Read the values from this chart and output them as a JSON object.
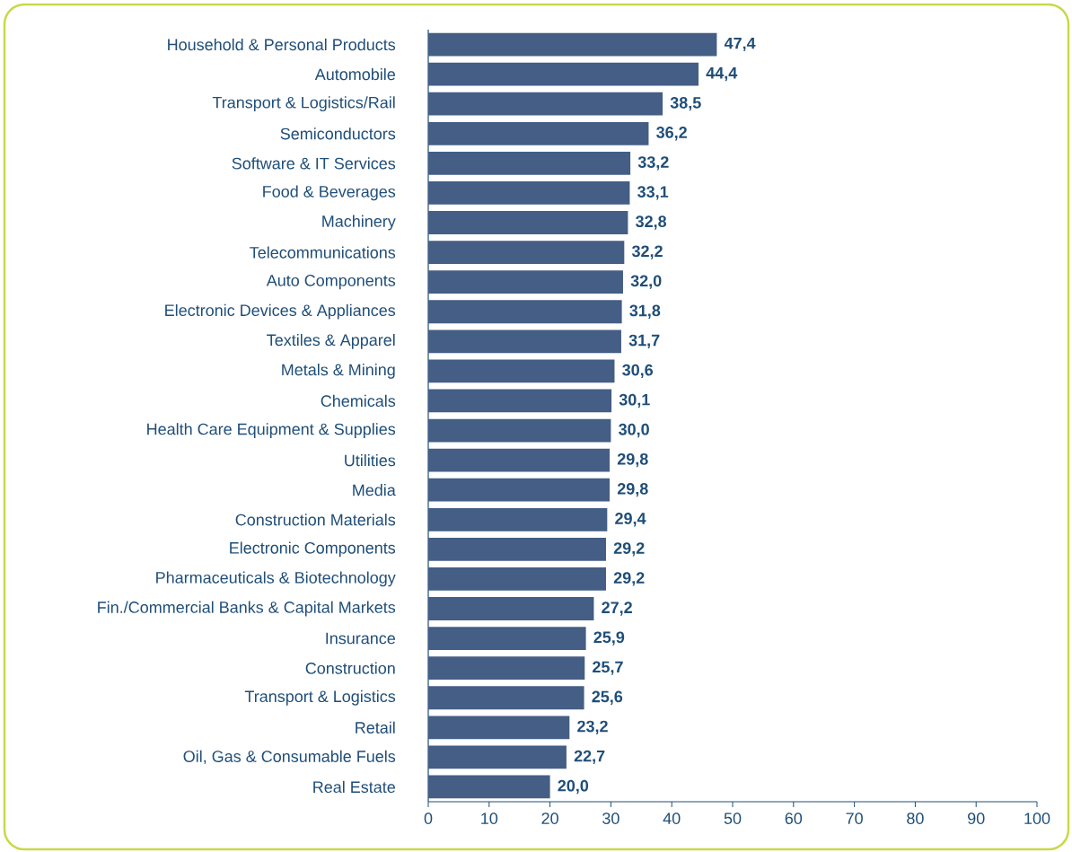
{
  "chart_data": {
    "type": "bar",
    "orientation": "horizontal",
    "categories": [
      "Household & Personal Products",
      "Automobile",
      "Transport & Logistics/Rail",
      "Semiconductors",
      "Software & IT Services",
      "Food & Beverages",
      "Machinery",
      "Telecommunications",
      "Auto Components",
      "Electronic Devices & Appliances",
      "Textiles & Apparel",
      "Metals & Mining",
      "Chemicals",
      "Health Care Equipment & Supplies",
      "Utilities",
      "Media",
      "Construction Materials",
      "Electronic Components",
      "Pharmaceuticals & Biotechnology",
      "Fin./Commercial Banks & Capital Markets",
      "Insurance",
      "Construction",
      "Transport & Logistics",
      "Retail",
      "Oil, Gas & Consumable Fuels",
      "Real Estate"
    ],
    "values": [
      47.4,
      44.4,
      38.5,
      36.2,
      33.2,
      33.1,
      32.8,
      32.2,
      32.0,
      31.8,
      31.7,
      30.6,
      30.1,
      30.0,
      29.8,
      29.8,
      29.4,
      29.2,
      29.2,
      27.2,
      25.9,
      25.7,
      25.6,
      23.2,
      22.7,
      20.0
    ],
    "value_labels": [
      "47,4",
      "44,4",
      "38,5",
      "36,2",
      "33,2",
      "33,1",
      "32,8",
      "32,2",
      "32,0",
      "31,8",
      "31,7",
      "30,6",
      "30,1",
      "30,0",
      "29,8",
      "29,8",
      "29,4",
      "29,2",
      "29,2",
      "27,2",
      "25,9",
      "25,7",
      "25,6",
      "23,2",
      "22,7",
      "20,0"
    ],
    "color": "#445e85",
    "xlim": [
      0,
      100
    ],
    "xticks": [
      0,
      10,
      20,
      30,
      40,
      50,
      60,
      70,
      80,
      90,
      100
    ]
  }
}
